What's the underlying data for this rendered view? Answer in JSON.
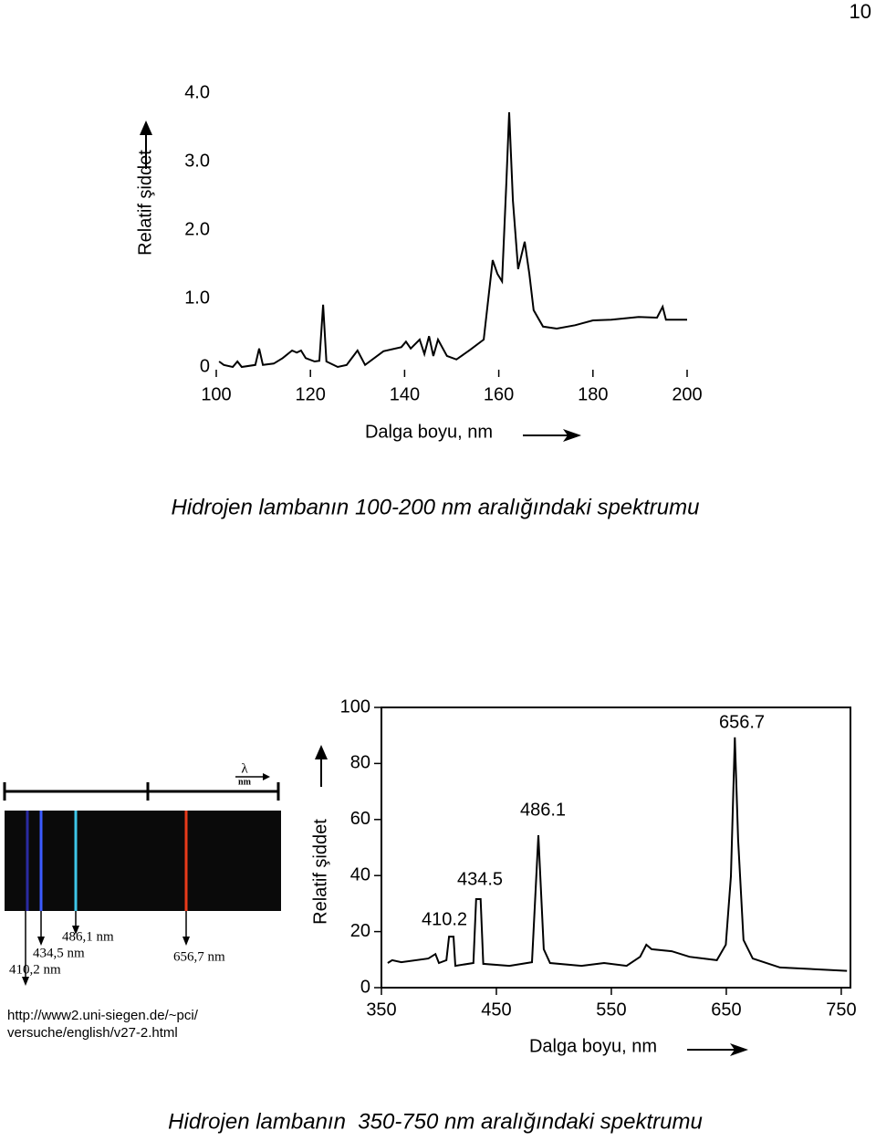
{
  "page_number": "10",
  "chart_data": [
    {
      "type": "line",
      "y_label": "Relatif şiddet",
      "x_label": "Dalga boyu, nm",
      "color": "#000000",
      "x": [
        100.6,
        101.6,
        103.5,
        104.5,
        105.4,
        108.3,
        109.1,
        109.9,
        112.2,
        114.1,
        116.1,
        117.1,
        118.0,
        119.0,
        120.9,
        121.9,
        122.7,
        123.4,
        125.8,
        127.7,
        130.0,
        131.6,
        135.5,
        139.3,
        140.3,
        141.3,
        143.2,
        144.2,
        145.2,
        146.1,
        147.1,
        149.0,
        151.0,
        153.9,
        156.8,
        158.7,
        159.7,
        160.7,
        161.6,
        162.2,
        163.0,
        164.1,
        165.5,
        166.5,
        167.4,
        169.4,
        172.3,
        176.2,
        180.0,
        183.9,
        189.7,
        193.6,
        194.8,
        195.5,
        200.0
      ],
      "values": [
        0.08,
        0.03,
        0,
        0.08,
        0,
        0.03,
        0.27,
        0.03,
        0.05,
        0.13,
        0.24,
        0.21,
        0.24,
        0.13,
        0.08,
        0.09,
        0.91,
        0.08,
        0,
        0.03,
        0.24,
        0.03,
        0.23,
        0.29,
        0.37,
        0.27,
        0.4,
        0.19,
        0.45,
        0.16,
        0.4,
        0.16,
        0.11,
        0.25,
        0.4,
        1.56,
        1.36,
        1.25,
        2.69,
        3.72,
        2.43,
        1.43,
        1.83,
        1.36,
        0.83,
        0.59,
        0.56,
        0.61,
        0.68,
        0.69,
        0.73,
        0.72,
        0.88,
        0.69,
        0.69
      ],
      "xlim": [
        100,
        200
      ],
      "xticks": [
        100,
        120,
        140,
        160,
        180,
        200
      ],
      "ylim": [
        0,
        4
      ],
      "yticks": [
        0,
        {
          "value": 1,
          "label": "1.0"
        },
        {
          "value": 2,
          "label": "2.0"
        },
        {
          "value": 3,
          "label": "3.0"
        },
        {
          "value": 4,
          "label": "4.0"
        }
      ]
    },
    {
      "type": "line",
      "y_label": "Relatif şiddet",
      "x_label": "Dalga boyu, nm",
      "color": "#000000",
      "x": [
        355.5,
        359.4,
        367.3,
        390.8,
        397,
        400,
        406.5,
        408.8,
        412.7,
        414.3,
        430,
        432.4,
        436.3,
        438.6,
        461.4,
        481,
        486.5,
        491.2,
        496.7,
        524,
        543.7,
        563.3,
        575,
        580.4,
        585,
        602.5,
        618,
        641.8,
        649.6,
        654,
        657.4,
        660.3,
        665,
        673,
        696.7,
        755
      ],
      "values": [
        8.8,
        9.8,
        9.1,
        10.4,
        12,
        8.8,
        9.8,
        18.2,
        18.2,
        7.8,
        8.8,
        31.6,
        31.6,
        8.5,
        7.8,
        9.1,
        54.4,
        13.7,
        8.8,
        7.8,
        8.8,
        7.8,
        11,
        15.3,
        13.7,
        13,
        11,
        9.8,
        15.3,
        39.7,
        89.3,
        52.8,
        17,
        10.4,
        7.2,
        6
      ],
      "annotations": [
        "410.2",
        "434.5",
        "486.1",
        "656.7"
      ],
      "xlim": [
        350,
        758
      ],
      "xticks": [
        350,
        450,
        550,
        650,
        750
      ],
      "ylim": [
        0,
        100
      ],
      "yticks": [
        0,
        20,
        40,
        60,
        80,
        100
      ]
    }
  ],
  "captions": [
    "Hidrojen lambanın 100-200 nm aralığındaki spektrumu",
    "Hidrojen lambanın  350-750 nm aralığındaki spektrumu"
  ],
  "strip": {
    "lambda": "λ",
    "unit": "nm",
    "lines": [
      "486,1 nm",
      "434,5 nm",
      "410,2 nm",
      "656,7 nm"
    ]
  },
  "url": [
    "http://www2.uni-siegen.de/~pci/",
    "versuche/english/v27-2.html"
  ]
}
